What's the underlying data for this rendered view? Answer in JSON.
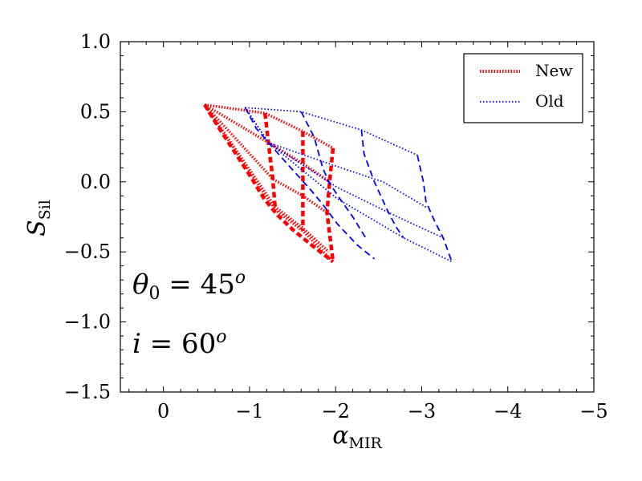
{
  "chart_data": {
    "type": "line",
    "title": "",
    "xlabel": "α",
    "xlabel_sub": "MIR",
    "ylabel": "S",
    "ylabel_sub": "Sil",
    "xlim": [
      0.5,
      -5
    ],
    "ylim": [
      -1.5,
      1.0
    ],
    "x_ticks": [
      0,
      -1,
      -2,
      -3,
      -4,
      -5
    ],
    "x_tick_labels": [
      "0",
      "−1",
      "−2",
      "−3",
      "−4",
      "−5"
    ],
    "y_ticks": [
      1.0,
      0.5,
      0.0,
      -0.5,
      -1.0,
      -1.5
    ],
    "y_tick_labels": [
      "1.0",
      "0.5",
      "0.0",
      "−0.5",
      "−1.0",
      "−1.5"
    ],
    "grid": false,
    "legend_position": "top-right",
    "legend": [
      {
        "name": "New",
        "color": "#ff0000",
        "style": "dotted"
      },
      {
        "name": "Old",
        "color": "#0000ff",
        "style": "dotted"
      }
    ],
    "annotations": [
      {
        "label": "theta",
        "symbol": "θ",
        "sub": "0",
        "text": " = 45",
        "sup": "o"
      },
      {
        "label": "inclination",
        "symbol": "i",
        "text": " = 60",
        "sup": "o"
      }
    ],
    "series": [
      {
        "name": "New",
        "group": "dotted",
        "color": "#ff0000",
        "points": [
          [
            -0.48,
            0.55
          ],
          [
            -1.18,
            0.49
          ],
          [
            -1.62,
            0.36
          ],
          [
            -1.97,
            0.24
          ]
        ]
      },
      {
        "name": "New",
        "group": "dotted",
        "color": "#ff0000",
        "points": [
          [
            -0.48,
            0.55
          ],
          [
            -1.22,
            0.28
          ],
          [
            -1.62,
            0.13
          ],
          [
            -1.93,
            0.0
          ]
        ]
      },
      {
        "name": "New",
        "group": "dotted",
        "color": "#ff0000",
        "points": [
          [
            -0.48,
            0.55
          ],
          [
            -1.27,
            0.02
          ],
          [
            -1.62,
            -0.1
          ],
          [
            -1.9,
            -0.22
          ]
        ]
      },
      {
        "name": "New",
        "group": "dotted",
        "color": "#ff0000",
        "points": [
          [
            -0.48,
            0.55
          ],
          [
            -1.3,
            -0.18
          ],
          [
            -1.62,
            -0.33
          ],
          [
            -1.92,
            -0.5
          ]
        ]
      },
      {
        "name": "New",
        "group": "dotted",
        "color": "#ff0000",
        "points": [
          [
            -0.48,
            0.55
          ],
          [
            -1.3,
            -0.2
          ],
          [
            -1.62,
            -0.35
          ],
          [
            -1.97,
            -0.57
          ]
        ]
      },
      {
        "name": "New",
        "group": "dashed",
        "color": "#ff0000",
        "points": [
          [
            -0.48,
            0.55
          ],
          [
            -0.65,
            0.38
          ],
          [
            -0.82,
            0.22
          ],
          [
            -1.0,
            0.05
          ],
          [
            -1.17,
            -0.12
          ],
          [
            -1.33,
            -0.24
          ],
          [
            -1.5,
            -0.34
          ],
          [
            -1.72,
            -0.45
          ],
          [
            -1.97,
            -0.57
          ]
        ]
      },
      {
        "name": "New",
        "group": "dashed",
        "color": "#ff0000",
        "points": [
          [
            -1.18,
            0.49
          ],
          [
            -1.22,
            0.28
          ],
          [
            -1.27,
            0.02
          ],
          [
            -1.3,
            -0.2
          ]
        ]
      },
      {
        "name": "New",
        "group": "dashed",
        "color": "#ff0000",
        "points": [
          [
            -1.62,
            0.36
          ],
          [
            -1.62,
            0.13
          ],
          [
            -1.62,
            -0.1
          ],
          [
            -1.62,
            -0.35
          ]
        ]
      },
      {
        "name": "New",
        "group": "dashed",
        "color": "#ff0000",
        "points": [
          [
            -1.97,
            0.24
          ],
          [
            -1.93,
            0.0
          ],
          [
            -1.9,
            -0.22
          ],
          [
            -1.97,
            -0.57
          ]
        ]
      },
      {
        "name": "Old",
        "group": "dotted",
        "color": "#0000ff",
        "points": [
          [
            -0.95,
            0.53
          ],
          [
            -1.6,
            0.5
          ],
          [
            -2.3,
            0.37
          ],
          [
            -2.95,
            0.19
          ]
        ]
      },
      {
        "name": "Old",
        "group": "dotted",
        "color": "#0000ff",
        "points": [
          [
            -0.95,
            0.53
          ],
          [
            -1.22,
            0.28
          ],
          [
            -1.92,
            0.13
          ],
          [
            -2.55,
            0.0
          ],
          [
            -3.05,
            -0.18
          ]
        ]
      },
      {
        "name": "Old",
        "group": "dotted",
        "color": "#0000ff",
        "points": [
          [
            -0.95,
            0.53
          ],
          [
            -1.22,
            0.28
          ],
          [
            -2.02,
            -0.04
          ],
          [
            -2.72,
            -0.25
          ],
          [
            -3.25,
            -0.4
          ]
        ]
      },
      {
        "name": "Old",
        "group": "dotted",
        "color": "#0000ff",
        "points": [
          [
            -0.95,
            0.53
          ],
          [
            -1.22,
            0.28
          ],
          [
            -2.02,
            -0.12
          ],
          [
            -2.79,
            -0.4
          ],
          [
            -3.35,
            -0.57
          ]
        ]
      },
      {
        "name": "Old",
        "group": "dashed",
        "color": "#0000ff",
        "points": [
          [
            -0.95,
            0.53
          ],
          [
            -1.08,
            0.38
          ],
          [
            -1.22,
            0.28
          ],
          [
            -1.45,
            0.12
          ],
          [
            -1.7,
            -0.05
          ],
          [
            -1.85,
            -0.16
          ],
          [
            -2.02,
            -0.3
          ],
          [
            -2.25,
            -0.45
          ],
          [
            -2.45,
            -0.55
          ]
        ]
      },
      {
        "name": "Old",
        "group": "dashed",
        "color": "#0000ff",
        "points": [
          [
            -1.6,
            0.5
          ],
          [
            -1.75,
            0.32
          ],
          [
            -1.85,
            0.1
          ],
          [
            -1.92,
            0.0
          ],
          [
            -2.05,
            -0.12
          ],
          [
            -2.2,
            -0.25
          ],
          [
            -2.35,
            -0.4
          ]
        ]
      },
      {
        "name": "Old",
        "group": "dashed",
        "color": "#0000ff",
        "points": [
          [
            -2.3,
            0.37
          ],
          [
            -2.33,
            0.2
          ],
          [
            -2.45,
            0.0
          ],
          [
            -2.6,
            -0.2
          ],
          [
            -2.7,
            -0.32
          ],
          [
            -2.79,
            -0.4
          ]
        ]
      },
      {
        "name": "Old",
        "group": "dashed",
        "color": "#0000ff",
        "points": [
          [
            -2.95,
            0.19
          ],
          [
            -3.02,
            0.0
          ],
          [
            -3.05,
            -0.14
          ],
          [
            -3.15,
            -0.28
          ],
          [
            -3.25,
            -0.4
          ],
          [
            -3.35,
            -0.57
          ]
        ]
      }
    ]
  }
}
